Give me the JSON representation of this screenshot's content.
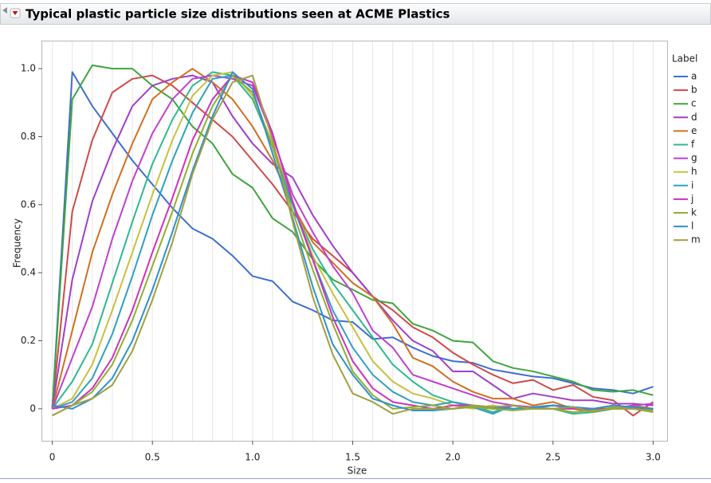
{
  "chart_data": {
    "type": "line",
    "title": "Typical plastic particle size distributions seen at ACME Plastics",
    "xlabel": "Size",
    "ylabel": "Frequency",
    "legend_title": "Label",
    "legend": "right",
    "grid": true,
    "xlim": [
      -0.05,
      3.07
    ],
    "ylim": [
      -0.094,
      1.08
    ],
    "xticks": [
      0,
      0.5,
      {
        "value": 1,
        "label": "1.0"
      },
      1.5,
      {
        "value": 2,
        "label": "2.0"
      },
      2.5,
      {
        "value": 3,
        "label": "3.0"
      }
    ],
    "yticks": [
      0,
      0.2,
      0.4,
      0.6,
      0.8,
      {
        "value": 1,
        "label": "1.0"
      }
    ],
    "x": [
      0,
      0.1,
      0.2,
      0.3,
      0.4,
      0.5,
      0.6,
      0.7,
      0.8,
      0.9,
      1.0,
      1.1,
      1.2,
      1.3,
      1.4,
      1.5,
      1.6,
      1.7,
      1.8,
      1.9,
      2.0,
      2.1,
      2.2,
      2.3,
      2.4,
      2.5,
      2.6,
      2.7,
      2.8,
      2.9,
      3.0
    ],
    "series": [
      {
        "name": "a",
        "color": "#3f6fcf",
        "values": [
          0,
          0.99,
          0.89,
          0.81,
          0.73,
          0.66,
          0.59,
          0.53,
          0.5,
          0.45,
          0.39,
          0.375,
          0.315,
          0.29,
          0.26,
          0.255,
          0.205,
          0.21,
          0.18,
          0.155,
          0.14,
          0.135,
          0.115,
          0.105,
          0.095,
          0.09,
          0.075,
          0.06,
          0.055,
          0.045,
          0.065
        ]
      },
      {
        "name": "b",
        "color": "#d04a4a",
        "values": [
          0,
          0.58,
          0.79,
          0.93,
          0.97,
          0.98,
          0.95,
          0.9,
          0.85,
          0.8,
          0.73,
          0.66,
          0.58,
          0.5,
          0.45,
          0.4,
          0.33,
          0.29,
          0.24,
          0.21,
          0.165,
          0.13,
          0.1,
          0.075,
          0.085,
          0.055,
          0.07,
          0.035,
          0.025,
          -0.02,
          0.02
        ]
      },
      {
        "name": "c",
        "color": "#3fa53f",
        "values": [
          0,
          0.91,
          1.01,
          1.0,
          1.0,
          0.95,
          0.91,
          0.83,
          0.78,
          0.69,
          0.65,
          0.56,
          0.52,
          0.44,
          0.38,
          0.35,
          0.32,
          0.31,
          0.25,
          0.23,
          0.2,
          0.195,
          0.14,
          0.12,
          0.11,
          0.095,
          0.08,
          0.055,
          0.05,
          0.055,
          0.04
        ]
      },
      {
        "name": "d",
        "color": "#a040c8",
        "values": [
          0,
          0.38,
          0.61,
          0.76,
          0.89,
          0.95,
          0.97,
          0.98,
          0.96,
          0.86,
          0.78,
          0.72,
          0.68,
          0.57,
          0.48,
          0.4,
          0.33,
          0.26,
          0.2,
          0.17,
          0.11,
          0.11,
          0.07,
          0.03,
          0.045,
          0.035,
          0.025,
          0.025,
          0.015,
          0.015,
          0.01
        ]
      },
      {
        "name": "e",
        "color": "#d07020",
        "values": [
          0,
          0.23,
          0.46,
          0.63,
          0.78,
          0.91,
          0.96,
          1.0,
          0.96,
          0.91,
          0.83,
          0.73,
          0.6,
          0.49,
          0.43,
          0.37,
          0.33,
          0.25,
          0.15,
          0.125,
          0.08,
          0.05,
          0.03,
          0.03,
          0.01,
          0.02,
          0,
          -0.01,
          0,
          0.01,
          0
        ]
      },
      {
        "name": "f",
        "color": "#30b890",
        "values": [
          0,
          0.08,
          0.19,
          0.37,
          0.55,
          0.72,
          0.85,
          0.95,
          0.99,
          0.98,
          0.91,
          0.77,
          0.6,
          0.47,
          0.37,
          0.29,
          0.21,
          0.13,
          0.08,
          0.04,
          0.02,
          0.01,
          -0.01,
          0.01,
          0,
          0,
          -0.015,
          -0.01,
          0,
          0,
          0
        ]
      },
      {
        "name": "g",
        "color": "#c040d0",
        "values": [
          0,
          0.15,
          0.3,
          0.5,
          0.67,
          0.81,
          0.91,
          0.97,
          0.98,
          0.97,
          0.95,
          0.8,
          0.63,
          0.52,
          0.42,
          0.34,
          0.23,
          0.18,
          0.1,
          0.08,
          0.06,
          0.04,
          0.02,
          0.01,
          0.005,
          0.01,
          0,
          -0.005,
          0,
          0.01,
          0.015
        ]
      },
      {
        "name": "h",
        "color": "#c8c040",
        "values": [
          0,
          0.03,
          0.13,
          0.29,
          0.46,
          0.63,
          0.79,
          0.92,
          0.98,
          0.99,
          0.92,
          0.78,
          0.61,
          0.45,
          0.34,
          0.24,
          0.14,
          0.08,
          0.045,
          0.03,
          0.01,
          0,
          0.01,
          0,
          0.005,
          0,
          0,
          0,
          0.005,
          0,
          0
        ]
      },
      {
        "name": "i",
        "color": "#30a0c0",
        "values": [
          0,
          0.02,
          0.09,
          0.22,
          0.39,
          0.57,
          0.73,
          0.87,
          0.97,
          0.98,
          0.93,
          0.77,
          0.6,
          0.44,
          0.29,
          0.18,
          0.1,
          0.05,
          0.02,
          0.01,
          0.02,
          0.005,
          -0.015,
          0.01,
          0,
          0.01,
          0.005,
          0,
          0,
          0.005,
          0
        ]
      },
      {
        "name": "j",
        "color": "#d030c0",
        "values": [
          0,
          0.01,
          0.06,
          0.15,
          0.29,
          0.46,
          0.62,
          0.79,
          0.91,
          0.98,
          0.96,
          0.81,
          0.61,
          0.44,
          0.27,
          0.14,
          0.06,
          0.02,
          0.01,
          0,
          0.01,
          0.01,
          0,
          0.01,
          0,
          0,
          0,
          0,
          0,
          0,
          0
        ]
      },
      {
        "name": "k",
        "color": "#90b030",
        "values": [
          -0.02,
          0.01,
          0.05,
          0.13,
          0.26,
          0.42,
          0.58,
          0.75,
          0.89,
          0.98,
          0.93,
          0.77,
          0.58,
          0.41,
          0.25,
          0.11,
          0.04,
          0,
          0.005,
          0.01,
          0,
          0.005,
          0,
          -0.005,
          0,
          0,
          -0.01,
          -0.005,
          0,
          0,
          -0.01
        ]
      },
      {
        "name": "l",
        "color": "#3090d0",
        "values": [
          0.01,
          0,
          0.03,
          0.09,
          0.2,
          0.35,
          0.52,
          0.7,
          0.86,
          0.99,
          0.94,
          0.75,
          0.56,
          0.36,
          0.19,
          0.1,
          0.03,
          0.01,
          -0.005,
          -0.005,
          0,
          0.01,
          0.005,
          0,
          0.005,
          0.01,
          0.005,
          0,
          0.01,
          0.005,
          0
        ]
      },
      {
        "name": "m",
        "color": "#a0a040",
        "values": [
          -0.02,
          0.01,
          0.03,
          0.07,
          0.17,
          0.32,
          0.49,
          0.69,
          0.85,
          0.96,
          0.98,
          0.79,
          0.55,
          0.33,
          0.16,
          0.045,
          0.02,
          -0.015,
          0,
          0,
          0,
          0.01,
          0.005,
          0.01,
          0,
          0,
          0.005,
          -0.01,
          0.005,
          0,
          -0.005
        ]
      }
    ]
  }
}
